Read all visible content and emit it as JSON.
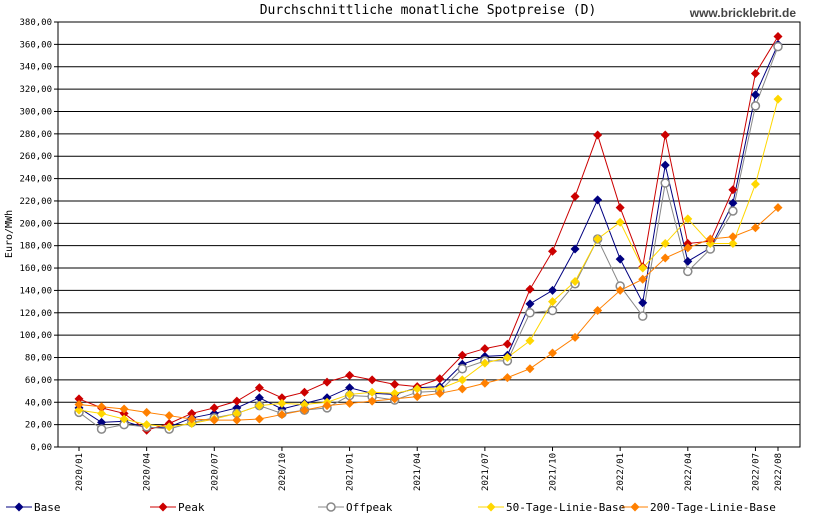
{
  "chart_data": {
    "type": "line",
    "title": "Durchschnittliche monatliche Spotpreise (D)",
    "watermark": "www.bricklebrit.de",
    "y_label": "Euro/MWh",
    "categories": [
      "2020/01",
      null,
      null,
      "2020/04",
      null,
      null,
      "2020/07",
      null,
      null,
      "2020/10",
      null,
      null,
      "2021/01",
      null,
      null,
      "2021/04",
      null,
      null,
      "2021/07",
      null,
      null,
      "2021/10",
      null,
      null,
      "2022/01",
      null,
      null,
      "2022/04",
      null,
      null,
      "2022/07",
      "2022/08"
    ],
    "ylim": [
      0,
      380
    ],
    "yticks": [
      {
        "value": 0,
        "label": "0,00"
      },
      {
        "value": 20,
        "label": "20,00"
      },
      {
        "value": 40,
        "label": "40,00"
      },
      {
        "value": 60,
        "label": "60,00"
      },
      {
        "value": 80,
        "label": "80,00"
      },
      {
        "value": 100,
        "label": "100,00"
      },
      {
        "value": 120,
        "label": "120,00"
      },
      {
        "value": 140,
        "label": "140,00"
      },
      {
        "value": 160,
        "label": "160,00"
      },
      {
        "value": 180,
        "label": "180,00"
      },
      {
        "value": 200,
        "label": "200,00"
      },
      {
        "value": 220,
        "label": "220,00"
      },
      {
        "value": 240,
        "label": "240,00"
      },
      {
        "value": 260,
        "label": "260,00"
      },
      {
        "value": 280,
        "label": "280,00"
      },
      {
        "value": 300,
        "label": "300,00"
      },
      {
        "value": 320,
        "label": "320,00"
      },
      {
        "value": 340,
        "label": "340,00"
      },
      {
        "value": 360,
        "label": "360,00"
      },
      {
        "value": 380,
        "label": "380,00"
      }
    ],
    "grid": true,
    "series": [
      {
        "name": "Base",
        "color": "#000080",
        "marker": "diamond",
        "values": [
          35,
          22,
          23,
          17,
          18,
          26,
          30,
          35,
          44,
          34,
          39,
          44,
          53,
          48,
          47,
          53,
          54,
          74,
          81,
          82,
          128,
          140,
          177,
          221,
          168,
          129,
          252,
          166,
          178,
          218,
          315,
          360
        ]
      },
      {
        "name": "Peak",
        "color": "#cc0000",
        "marker": "diamond",
        "values": [
          43,
          35,
          30,
          15,
          21,
          30,
          35,
          41,
          53,
          44,
          49,
          58,
          64,
          60,
          56,
          54,
          61,
          82,
          88,
          92,
          141,
          175,
          224,
          279,
          214,
          161,
          279,
          182,
          184,
          230,
          334,
          367
        ]
      },
      {
        "name": "Offpeak",
        "color": "#888888",
        "marker": "circle",
        "values": [
          31,
          16,
          20,
          18,
          16,
          22,
          26,
          30,
          37,
          30,
          33,
          35,
          46,
          45,
          42,
          49,
          50,
          70,
          77,
          77,
          120,
          122,
          146,
          186,
          144,
          117,
          236,
          157,
          177,
          211,
          305,
          358
        ]
      },
      {
        "name": "50-Tage-Linie-Base",
        "color": "#ffd700",
        "marker": "diamond",
        "values": [
          33,
          30,
          25,
          20,
          18,
          21,
          25,
          30,
          37,
          39,
          38,
          40,
          47,
          49,
          48,
          52,
          52,
          60,
          75,
          80,
          95,
          130,
          148,
          186,
          201,
          160,
          182,
          204,
          182,
          182,
          235,
          311
        ]
      },
      {
        "name": "200-Tage-Linie-Base",
        "color": "#ff8000",
        "marker": "diamond",
        "values": [
          38,
          36,
          34,
          31,
          28,
          25,
          24,
          24,
          25,
          29,
          33,
          37,
          39,
          41,
          43,
          45,
          48,
          52,
          57,
          62,
          70,
          84,
          98,
          122,
          140,
          150,
          169,
          178,
          186,
          188,
          196,
          214
        ]
      }
    ]
  }
}
